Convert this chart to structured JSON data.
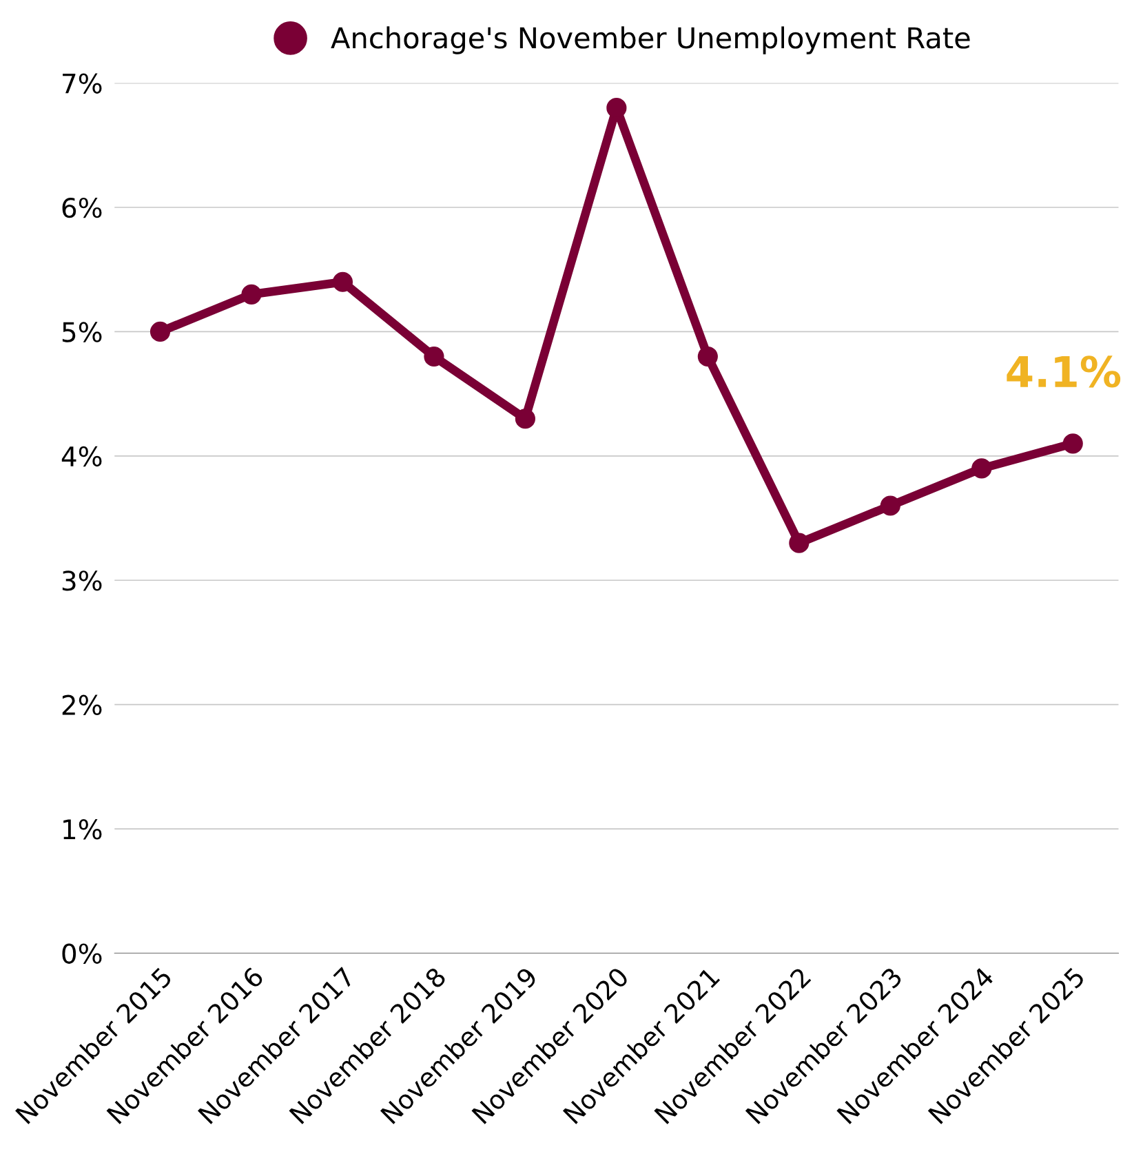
{
  "chart_data": {
    "type": "line",
    "categories": [
      "November 2015",
      "November 2016",
      "November 2017",
      "November 2018",
      "November 2019",
      "November 2020",
      "November 2021",
      "November 2022",
      "November 2023",
      "November 2024",
      "November 2025"
    ],
    "series": [
      {
        "name": "Anchorage's November Unemployment Rate",
        "color": "#7a0035",
        "values": [
          5.0,
          5.3,
          5.4,
          4.8,
          4.3,
          6.8,
          4.8,
          3.3,
          3.6,
          3.9,
          4.1
        ]
      }
    ],
    "ylim": [
      0,
      7
    ],
    "yticks": [
      {
        "value": 0,
        "label": "0%"
      },
      {
        "value": 1,
        "label": "1%"
      },
      {
        "value": 2,
        "label": "2%"
      },
      {
        "value": 3,
        "label": "3%"
      },
      {
        "value": 4,
        "label": "4%"
      },
      {
        "value": 5,
        "label": "5%"
      },
      {
        "value": 6,
        "label": "6%"
      },
      {
        "value": 7,
        "label": "7%"
      }
    ],
    "annotations": [
      {
        "text": "4.1%",
        "x": "November 2025",
        "y": 4.1
      }
    ],
    "grid": "y",
    "legend": "top",
    "marker": "circle",
    "line_style": "solid"
  }
}
